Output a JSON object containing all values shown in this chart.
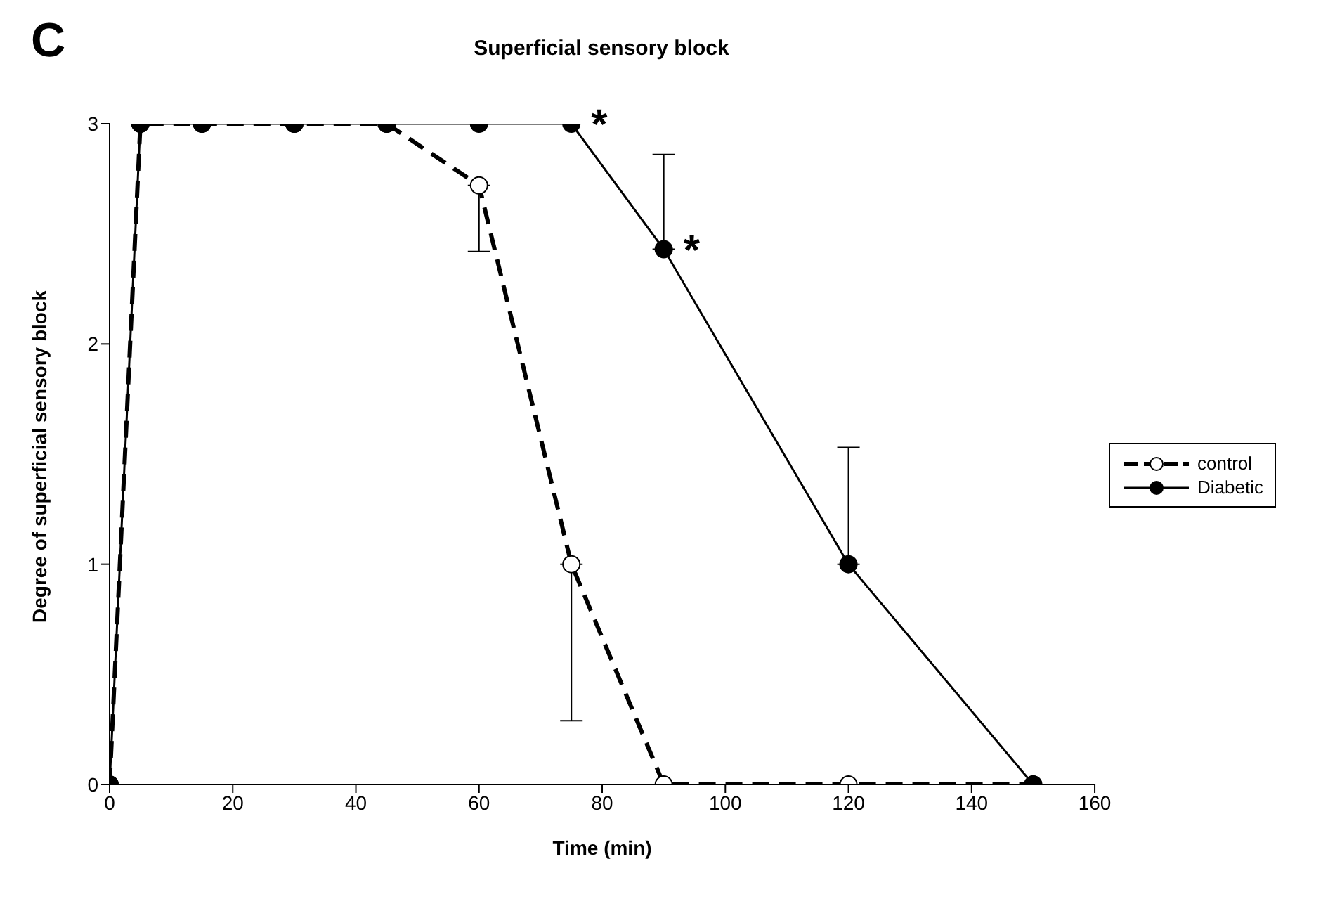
{
  "chart_data": {
    "type": "line",
    "title": "Superficial sensory block",
    "xlabel": "Time (min)",
    "ylabel": "Degree of superficial sensory block",
    "x": [
      0,
      5,
      15,
      30,
      45,
      60,
      75,
      90,
      120,
      150
    ],
    "series": [
      {
        "name": "control",
        "color": "#000000",
        "line_style": "dashed",
        "values": [
          0,
          3,
          3,
          3,
          3,
          2.72,
          1.0,
          0,
          0,
          0
        ],
        "errors": [
          null,
          null,
          null,
          null,
          null,
          [
            2.42,
            2.72
          ],
          [
            0.29,
            1.0
          ],
          null,
          null,
          null
        ]
      },
      {
        "name": "Diabetic",
        "color": "#000000",
        "line_style": "solid",
        "values": [
          0,
          3,
          3,
          3,
          3,
          3,
          3,
          2.43,
          1.0,
          0
        ],
        "errors": [
          null,
          null,
          null,
          null,
          null,
          null,
          null,
          [
            2.43,
            2.86
          ],
          [
            1.0,
            1.53
          ],
          null
        ]
      }
    ],
    "xlim": [
      0,
      160
    ],
    "xticks": [
      0,
      20,
      40,
      60,
      80,
      100,
      120,
      140,
      160
    ],
    "ylim": [
      0,
      3
    ],
    "yticks": [
      0,
      1,
      2,
      3
    ],
    "grid": false,
    "legend": "right",
    "marker": "circle",
    "annotations": [
      "C",
      {
        "text": "*",
        "x": 75,
        "y": 3
      },
      {
        "text": "*",
        "x": 90,
        "y": 2.43
      }
    ]
  }
}
